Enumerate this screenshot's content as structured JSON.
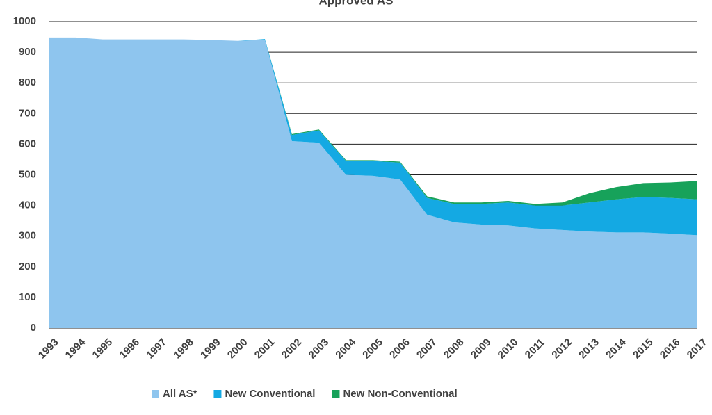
{
  "chart_data": {
    "type": "stacked-area",
    "title": "Approved AS",
    "x": [
      1993,
      1994,
      1995,
      1996,
      1997,
      1998,
      1999,
      2000,
      2001,
      2002,
      2003,
      2004,
      2005,
      2006,
      2007,
      2008,
      2009,
      2010,
      2011,
      2012,
      2013,
      2014,
      2015,
      2016,
      2017
    ],
    "series": [
      {
        "name": "All AS*",
        "color": "#8ec5ee",
        "values": [
          948,
          948,
          942,
          942,
          942,
          942,
          940,
          937,
          940,
          610,
          605,
          500,
          497,
          485,
          370,
          345,
          338,
          335,
          325,
          320,
          315,
          312,
          312,
          308,
          303
        ]
      },
      {
        "name": "New Conventional",
        "color": "#14a9e3",
        "values": [
          0,
          0,
          0,
          0,
          0,
          0,
          0,
          0,
          3,
          20,
          40,
          45,
          48,
          55,
          55,
          60,
          67,
          75,
          75,
          80,
          95,
          108,
          116,
          117,
          117
        ]
      },
      {
        "name": "New Non-Conventional",
        "color": "#17a25a",
        "values": [
          0,
          0,
          0,
          0,
          0,
          0,
          0,
          0,
          0,
          3,
          3,
          3,
          3,
          3,
          5,
          5,
          5,
          5,
          5,
          10,
          30,
          40,
          45,
          50,
          60
        ]
      }
    ],
    "xlim": [
      1993,
      2017
    ],
    "ylim": [
      0,
      1000
    ],
    "yticks": [
      0,
      100,
      200,
      300,
      400,
      500,
      600,
      700,
      800,
      900,
      1000
    ],
    "grid": true
  }
}
